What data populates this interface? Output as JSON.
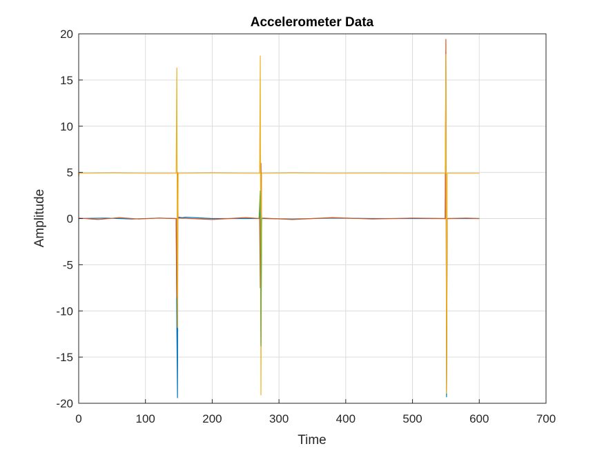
{
  "chart_data": {
    "type": "line",
    "title": "Accelerometer Data",
    "xlabel": "Time",
    "ylabel": "Amplitude",
    "xlim": [
      0,
      700
    ],
    "ylim": [
      -20,
      20
    ],
    "grid": true,
    "xticks": [
      0,
      100,
      200,
      300,
      400,
      500,
      600,
      700
    ],
    "yticks": [
      -20,
      -15,
      -10,
      -5,
      0,
      5,
      10,
      15,
      20
    ],
    "xtick_labels": [
      "0",
      "100",
      "200",
      "300",
      "400",
      "500",
      "600",
      "700"
    ],
    "ytick_labels": [
      "-20",
      "-15",
      "-10",
      "-5",
      "0",
      "5",
      "10",
      "15",
      "20"
    ],
    "series": [
      {
        "color": "#0072BD",
        "x": [
          0,
          40,
          80,
          120,
          146,
          147,
          148,
          148.5,
          149,
          150,
          155,
          160,
          200,
          271,
          272,
          273,
          274,
          275,
          320,
          380,
          440,
          500,
          549,
          550,
          551,
          552,
          553,
          560,
          600
        ],
        "y": [
          0.0,
          0.05,
          -0.05,
          0.05,
          0.0,
          -11.9,
          -19.4,
          0.3,
          0.0,
          0.15,
          0.1,
          0.15,
          0.0,
          0.0,
          2.5,
          -13.5,
          0.0,
          0.0,
          -0.05,
          0.05,
          0.0,
          0.0,
          0.0,
          18.0,
          -19.3,
          0.0,
          0.0,
          0.0,
          0.0
        ]
      },
      {
        "color": "#D95319",
        "x": [
          0,
          30,
          60,
          90,
          120,
          146,
          147,
          148,
          149,
          150,
          200,
          250,
          271,
          272,
          273,
          274,
          275,
          320,
          380,
          440,
          500,
          549,
          550,
          551,
          552,
          553,
          580,
          600
        ],
        "y": [
          0.05,
          -0.1,
          0.1,
          -0.05,
          0.05,
          0.0,
          -8.5,
          5.0,
          0.0,
          0.05,
          -0.1,
          0.1,
          0.0,
          -7.5,
          6.0,
          0.0,
          0.05,
          -0.1,
          0.1,
          -0.05,
          0.05,
          0.0,
          19.4,
          -18.8,
          0.0,
          0.0,
          0.05,
          0.0
        ]
      },
      {
        "color": "#EDB120",
        "x": [
          0,
          1,
          3,
          50,
          100,
          146,
          147,
          148,
          149,
          150,
          200,
          250,
          271,
          272,
          273,
          274,
          275,
          320,
          380,
          440,
          500,
          549,
          550,
          551,
          552,
          553,
          600
        ],
        "y": [
          4.5,
          5.0,
          4.9,
          4.95,
          4.9,
          4.9,
          16.3,
          -11.8,
          4.9,
          4.9,
          4.95,
          4.9,
          4.9,
          17.6,
          -19.1,
          4.9,
          4.9,
          4.95,
          4.9,
          4.92,
          4.9,
          4.9,
          17.8,
          -18.9,
          4.9,
          4.9,
          4.9
        ]
      },
      {
        "color": "#77AC30",
        "x": [
          270,
          272,
          273,
          274,
          276
        ],
        "y": [
          0.0,
          3.0,
          -13.8,
          0.0,
          0.0
        ]
      }
    ]
  }
}
